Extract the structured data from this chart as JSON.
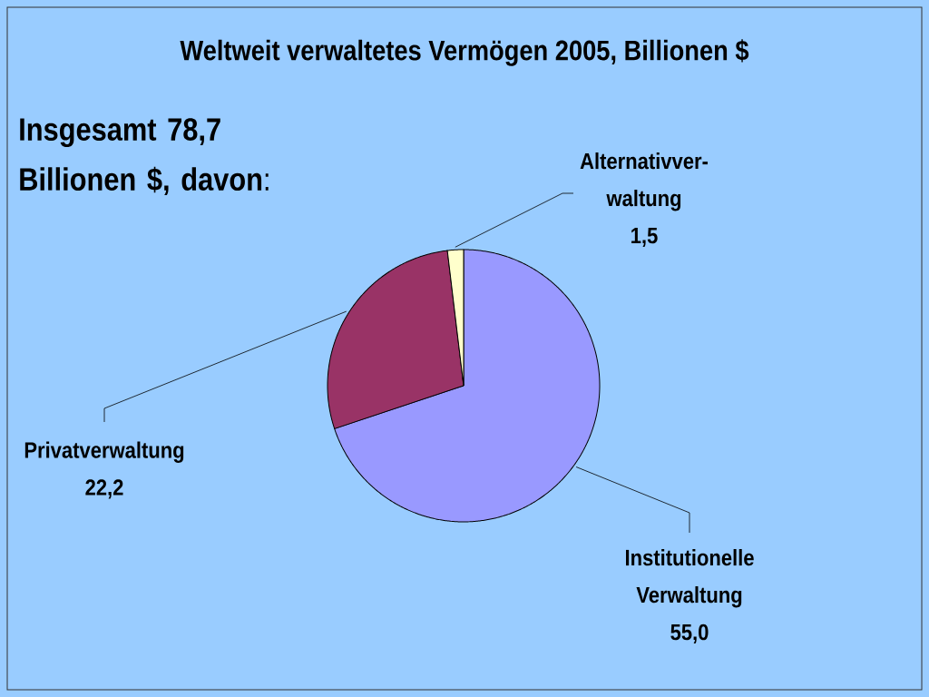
{
  "chart_data": {
    "type": "pie",
    "title": "Weltweit verwaltetes Vermögen 2005, Billionen $",
    "annotations": [
      "**Insgesamt 78,7 Billionen $, davon**:"
    ],
    "categories": [
      "Institutionelle Verwaltung",
      "Privatverwaltung",
      "Alternativver- waltung"
    ],
    "values": [
      55.0,
      22.2,
      1.5
    ],
    "value_labels": [
      "55,0",
      "22,2",
      "1,5"
    ],
    "colors": [
      "#9999ff",
      "#993366",
      "#ffffcc"
    ]
  }
}
